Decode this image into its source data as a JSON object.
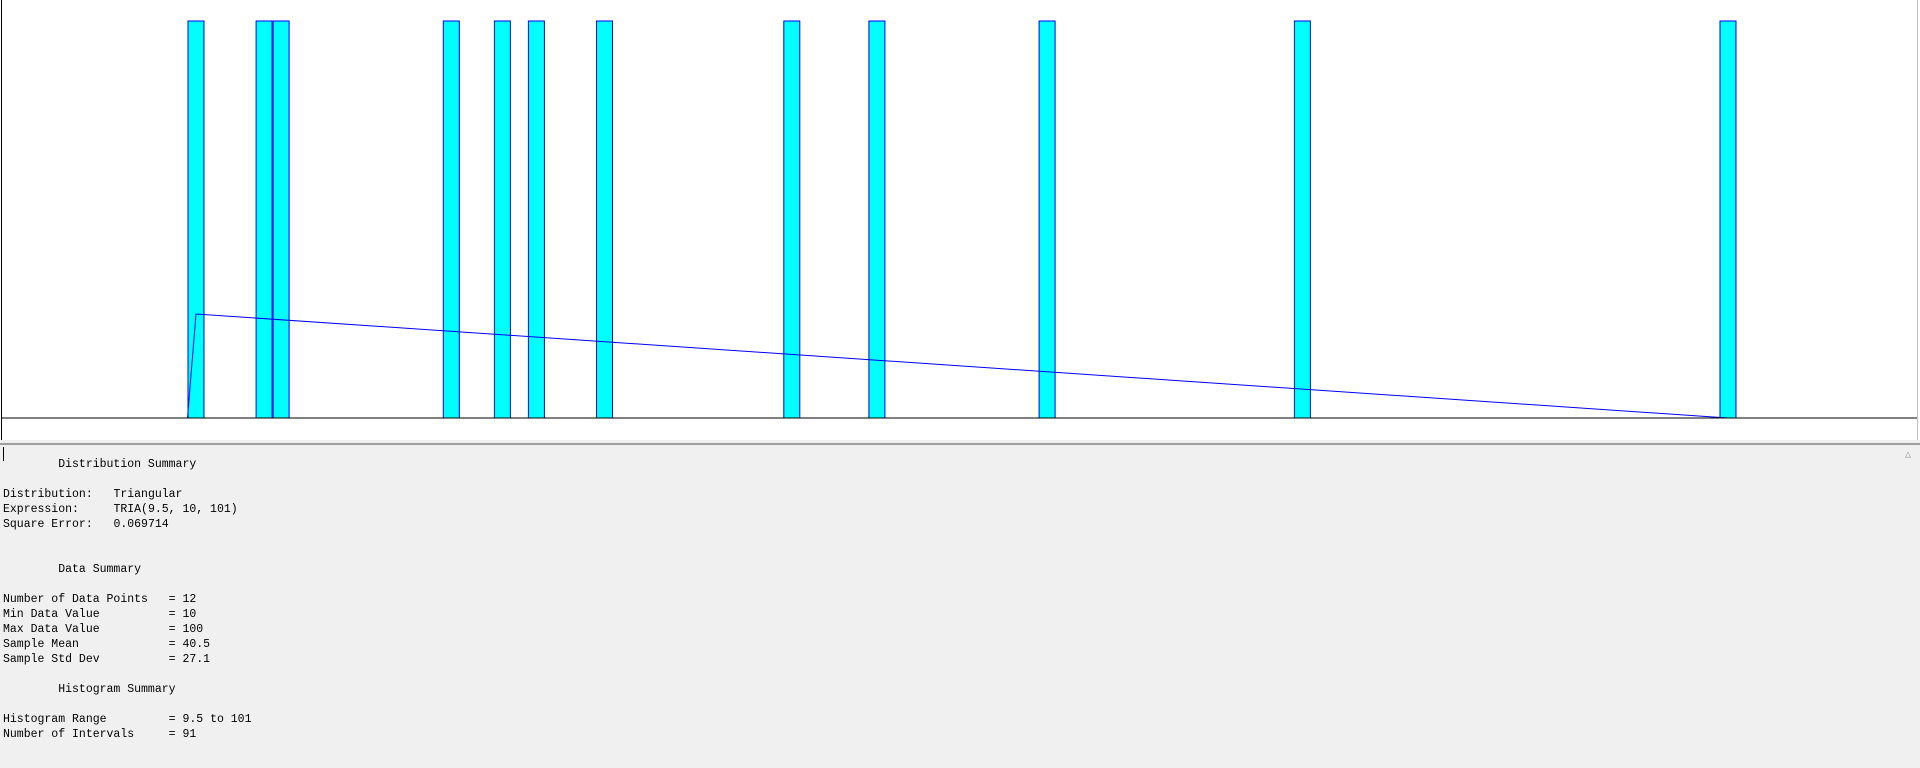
{
  "chart_data": {
    "type": "bar",
    "values": [
      10,
      14,
      15,
      25,
      28,
      30,
      34,
      45,
      50,
      60,
      75,
      100
    ],
    "bar_color": "#00ffff",
    "bar_edge_color": "#0000ff",
    "fit_line_color": "#0000ff",
    "axis_color": "#000000",
    "fitted_distribution": {
      "name": "Triangular",
      "min": 9.5,
      "mode": 10,
      "max": 101
    },
    "xlim": [
      9.5,
      101
    ]
  },
  "report": {
    "distribution_summary_heading": "Distribution Summary",
    "distribution_label": "Distribution:",
    "distribution_value": "Triangular",
    "expression_label": "Expression:",
    "expression_value": "TRIA(9.5, 10, 101)",
    "square_error_label": "Square Error:",
    "square_error_value": "0.069714",
    "data_summary_heading": "Data Summary",
    "data_points_label": "Number of Data Points",
    "data_points_value": "= 12",
    "min_label": "Min Data Value",
    "min_value": "= 10",
    "max_label": "Max Data Value",
    "max_value": "= 100",
    "mean_label": "Sample Mean",
    "mean_value": "= 40.5",
    "std_label": "Sample Std Dev",
    "std_value": "= 27.1",
    "histogram_summary_heading": "Histogram Summary",
    "range_label": "Histogram Range",
    "range_value": "= 9.5 to 101",
    "intervals_label": "Number of Intervals",
    "intervals_value": "= 91"
  },
  "scrollbar": {
    "up_arrow_icon": "chevron-up-icon"
  }
}
